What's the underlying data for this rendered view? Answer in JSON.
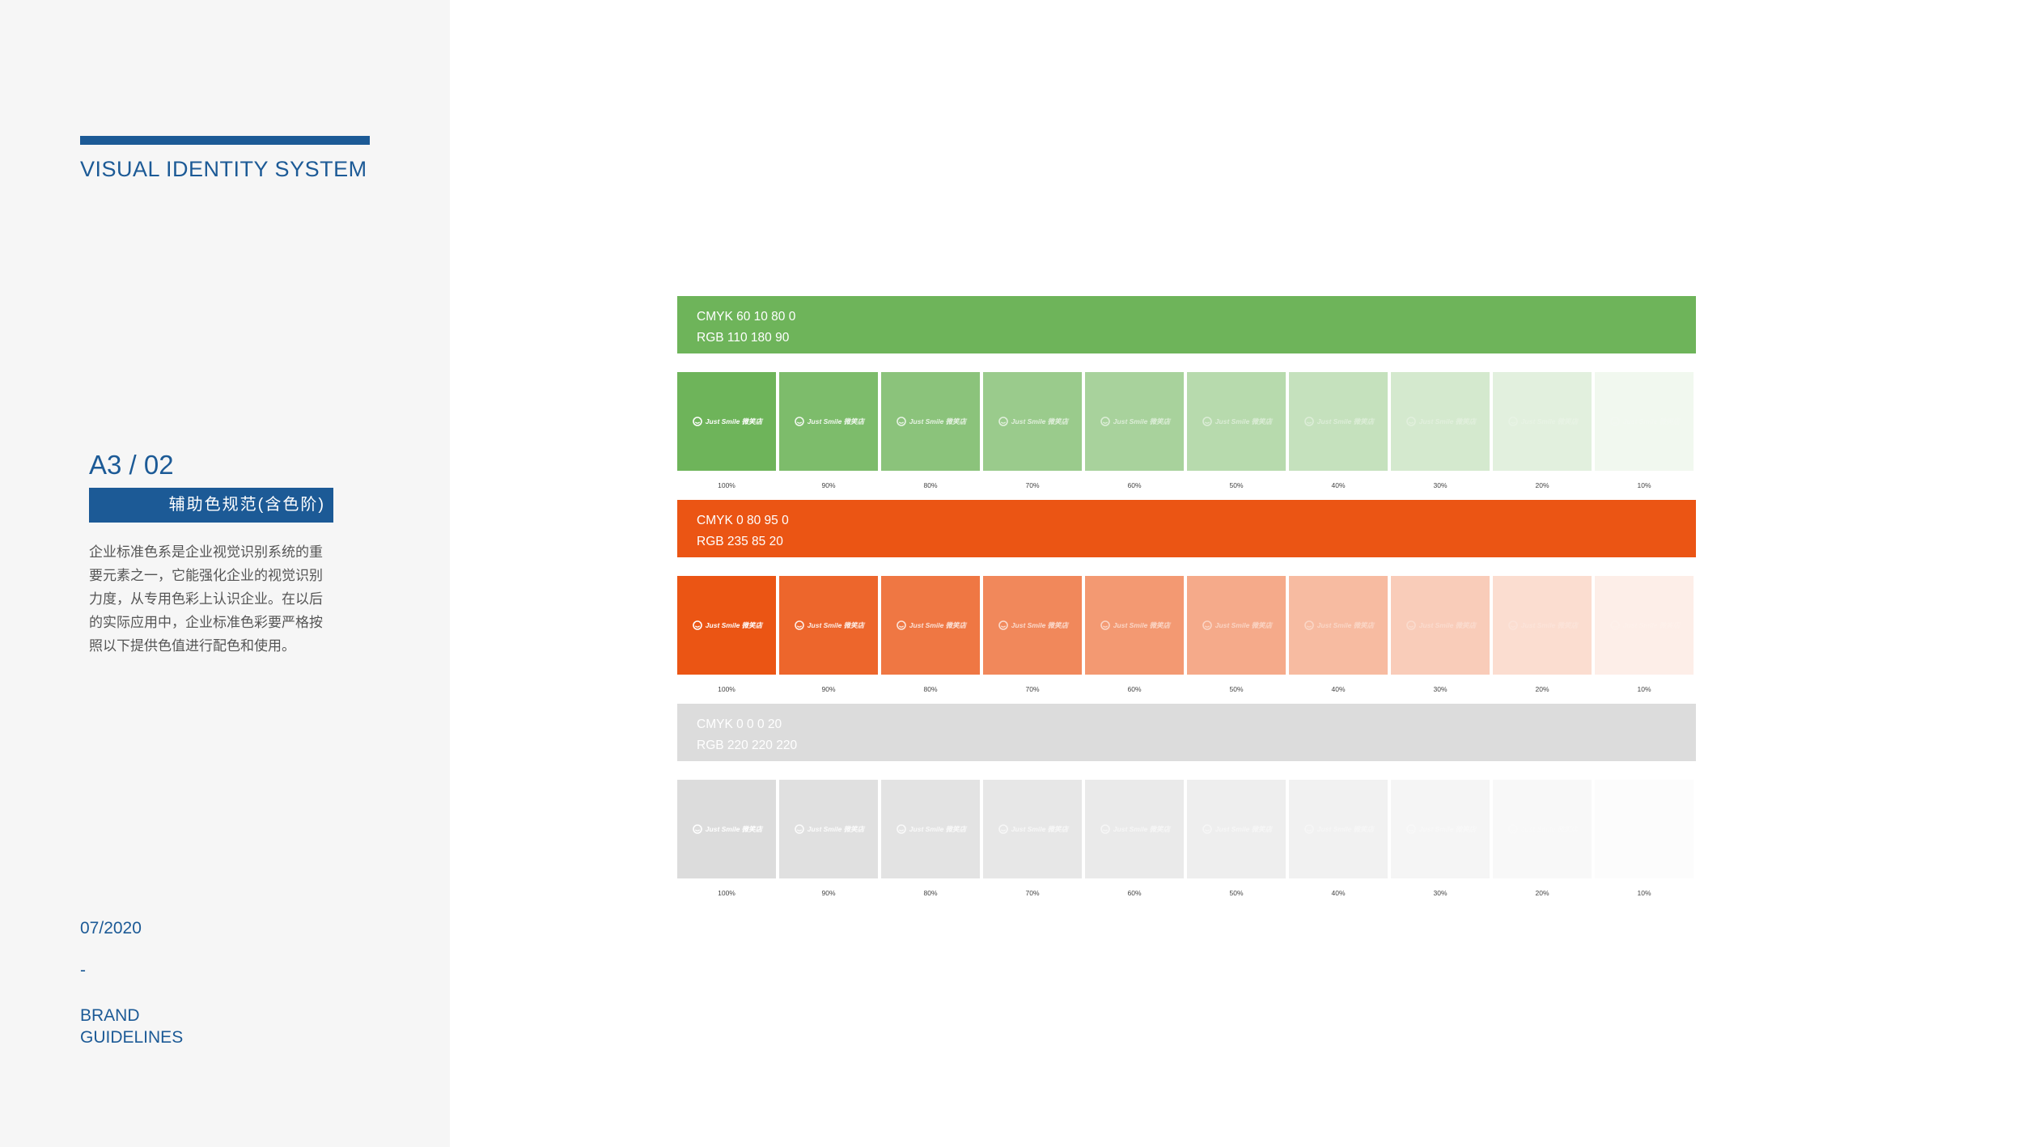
{
  "sidebar": {
    "header_title": "VISUAL IDENTITY SYSTEM",
    "section_code": "A3 / 02",
    "section_label": "辅助色规范(含色阶)",
    "description": "企业标准色系是企业视觉识别系统的重要元素之一，它能强化企业的视觉识别力度，从专用色彩上认识企业。在以后的实际应用中，企业标准色彩要严格按照以下提供色值进行配色和使用。",
    "date": "07/2020",
    "separator": "-",
    "footer_line1": "BRAND",
    "footer_line2": "GUIDELINES"
  },
  "colors": {
    "brand_blue": "#1c5a96",
    "green": "#6eb45a",
    "orange": "#eb5514",
    "gray": "#dcdcdc"
  },
  "logo_text": "Just Smile 微笑店",
  "tints": [
    "100%",
    "90%",
    "80%",
    "70%",
    "60%",
    "50%",
    "40%",
    "30%",
    "20%",
    "10%"
  ],
  "palettes": [
    {
      "name": "green",
      "cmyk": "CMYK 60 10 80 0",
      "rgb": "RGB 110 180 90",
      "hex": "#6eb45a"
    },
    {
      "name": "orange",
      "cmyk": "CMYK 0 80 95 0",
      "rgb": "RGB 235 85 20",
      "hex": "#eb5514"
    },
    {
      "name": "gray",
      "cmyk": "CMYK 0 0 0 20",
      "rgb": "RGB 220 220 220",
      "hex": "#dcdcdc"
    }
  ]
}
